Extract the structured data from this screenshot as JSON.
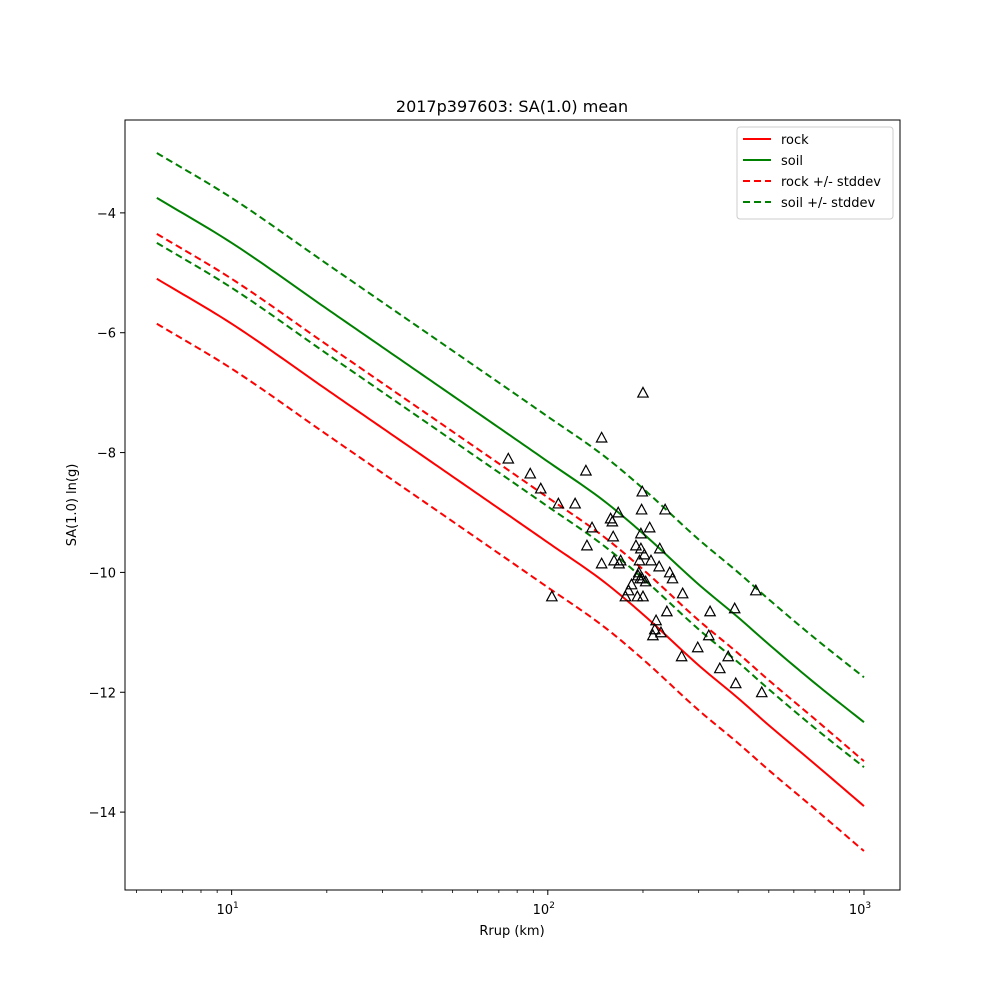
{
  "chart_data": {
    "type": "line",
    "title": "2017p397603: SA(1.0) mean",
    "xlabel": "Rrup (km)",
    "ylabel": "SA(1.0) ln(g)",
    "xscale": "log",
    "xlim": [
      4.6,
      1300
    ],
    "ylim": [
      -15.3,
      -2.45
    ],
    "grid": false,
    "legend": "top-right",
    "x_ticks": [
      {
        "value": 10,
        "base": "10",
        "exp": "1"
      },
      {
        "value": 100,
        "base": "10",
        "exp": "2"
      },
      {
        "value": 1000,
        "base": "10",
        "exp": "3"
      }
    ],
    "y_ticks": [
      {
        "value": -14,
        "label": "−14"
      },
      {
        "value": -12,
        "label": "−12"
      },
      {
        "value": -10,
        "label": "−10"
      },
      {
        "value": -8,
        "label": "−8"
      },
      {
        "value": -6,
        "label": "−6"
      },
      {
        "value": -4,
        "label": "−4"
      }
    ],
    "x": [
      5.8,
      10,
      20,
      50,
      100,
      150,
      200,
      300,
      400,
      500,
      700,
      1000
    ],
    "series": [
      {
        "name": "rock",
        "color": "#ff0000",
        "dash": false,
        "legend": true,
        "values": [
          -5.1,
          -5.85,
          -6.95,
          -8.4,
          -9.5,
          -10.15,
          -10.7,
          -11.55,
          -12.1,
          -12.55,
          -13.2,
          -13.9
        ]
      },
      {
        "name": "soil",
        "color": "#008000",
        "dash": false,
        "legend": true,
        "values": [
          -3.75,
          -4.5,
          -5.6,
          -7.05,
          -8.15,
          -8.8,
          -9.35,
          -10.2,
          -10.75,
          -11.2,
          -11.85,
          -12.5
        ]
      },
      {
        "name": "rock +/- stddev",
        "color": "#ff0000",
        "dash": true,
        "legend": true,
        "values": [
          -4.35,
          -5.1,
          -6.2,
          -7.65,
          -8.75,
          -9.4,
          -9.95,
          -10.8,
          -11.35,
          -11.8,
          -12.45,
          -13.15
        ]
      },
      {
        "name": "",
        "color": "#ff0000",
        "dash": true,
        "legend": false,
        "values": [
          -5.85,
          -6.6,
          -7.7,
          -9.15,
          -10.25,
          -10.9,
          -11.45,
          -12.3,
          -12.85,
          -13.3,
          -13.95,
          -14.65
        ]
      },
      {
        "name": "soil +/- stddev",
        "color": "#008000",
        "dash": true,
        "legend": true,
        "values": [
          -3.0,
          -3.75,
          -4.85,
          -6.3,
          -7.4,
          -8.05,
          -8.6,
          -9.45,
          -10.0,
          -10.45,
          -11.1,
          -11.75
        ]
      },
      {
        "name": "",
        "color": "#008000",
        "dash": true,
        "legend": false,
        "values": [
          -4.5,
          -5.25,
          -6.35,
          -7.8,
          -8.9,
          -9.55,
          -10.1,
          -10.95,
          -11.5,
          -11.95,
          -12.6,
          -13.25
        ]
      }
    ],
    "observations": [
      [
        75,
        -8.1
      ],
      [
        88,
        -8.35
      ],
      [
        95,
        -8.6
      ],
      [
        103,
        -10.4
      ],
      [
        108,
        -8.85
      ],
      [
        122,
        -8.85
      ],
      [
        132,
        -8.3
      ],
      [
        133,
        -9.55
      ],
      [
        138,
        -9.25
      ],
      [
        148,
        -7.75
      ],
      [
        148,
        -9.85
      ],
      [
        158,
        -9.1
      ],
      [
        160,
        -9.15
      ],
      [
        161,
        -9.4
      ],
      [
        162,
        -9.8
      ],
      [
        167,
        -9.0
      ],
      [
        168,
        -9.85
      ],
      [
        170,
        -9.8
      ],
      [
        176,
        -10.4
      ],
      [
        180,
        -10.3
      ],
      [
        184,
        -10.2
      ],
      [
        190,
        -9.55
      ],
      [
        192,
        -10.4
      ],
      [
        193,
        -10.05
      ],
      [
        194,
        -10.0
      ],
      [
        195,
        -9.8
      ],
      [
        196,
        -10.1
      ],
      [
        197,
        -9.6
      ],
      [
        197,
        -9.35
      ],
      [
        198,
        -8.95
      ],
      [
        199,
        -8.65
      ],
      [
        199,
        -10.1
      ],
      [
        200,
        -7.0
      ],
      [
        200,
        -10.4
      ],
      [
        202,
        -9.7
      ],
      [
        204,
        -10.15
      ],
      [
        210,
        -9.25
      ],
      [
        212,
        -9.8
      ],
      [
        215,
        -11.05
      ],
      [
        218,
        -10.95
      ],
      [
        220,
        -10.8
      ],
      [
        225,
        -9.9
      ],
      [
        226,
        -9.6
      ],
      [
        228,
        -11.0
      ],
      [
        235,
        -8.95
      ],
      [
        238,
        -10.65
      ],
      [
        243,
        -10.0
      ],
      [
        248,
        -10.1
      ],
      [
        265,
        -11.4
      ],
      [
        267,
        -10.35
      ],
      [
        298,
        -11.25
      ],
      [
        323,
        -11.05
      ],
      [
        326,
        -10.65
      ],
      [
        350,
        -11.6
      ],
      [
        372,
        -11.4
      ],
      [
        390,
        -10.6
      ],
      [
        393,
        -11.85
      ],
      [
        455,
        -10.3
      ],
      [
        475,
        -12.0
      ]
    ]
  }
}
